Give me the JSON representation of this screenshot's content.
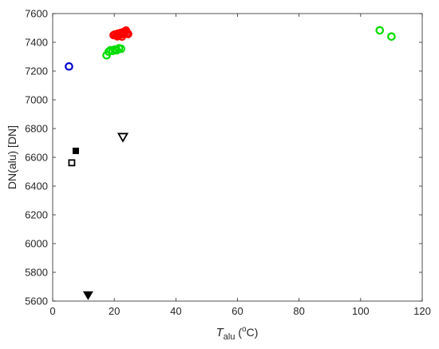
{
  "chart_data": {
    "type": "scatter",
    "xlabel": {
      "main": "T",
      "sub": "alu",
      "prefix": " (",
      "sup": "o",
      "suffix": "C)"
    },
    "ylabel": "DN(alu) [DN]",
    "xlim": [
      0,
      120
    ],
    "ylim": [
      5600,
      7600
    ],
    "xticks": [
      0,
      20,
      40,
      60,
      80,
      100,
      120
    ],
    "yticks": [
      5600,
      5800,
      6000,
      6200,
      6400,
      6600,
      6800,
      7000,
      7200,
      7400,
      7600
    ],
    "grid": false,
    "series": [
      {
        "marker": "circle-open",
        "color": "#ff0000",
        "points": [
          [
            19.8,
            7450
          ],
          [
            20.3,
            7455
          ],
          [
            20.8,
            7448
          ],
          [
            21.2,
            7460
          ],
          [
            21.6,
            7452
          ],
          [
            22.0,
            7465
          ],
          [
            22.4,
            7455
          ],
          [
            22.8,
            7470
          ],
          [
            23.2,
            7460
          ],
          [
            23.6,
            7475
          ],
          [
            24.0,
            7462
          ],
          [
            24.5,
            7458
          ],
          [
            21.0,
            7442
          ],
          [
            22.5,
            7440
          ],
          [
            23.8,
            7482
          ]
        ]
      },
      {
        "marker": "circle-open",
        "color": "#00dd00",
        "points": [
          [
            17.5,
            7310
          ],
          [
            18.2,
            7335
          ],
          [
            18.8,
            7345
          ],
          [
            19.5,
            7340
          ],
          [
            20.2,
            7350
          ],
          [
            20.8,
            7345
          ],
          [
            21.5,
            7358
          ],
          [
            22.2,
            7355
          ],
          [
            106.2,
            7483
          ],
          [
            110.0,
            7440
          ]
        ]
      },
      {
        "marker": "circle-open",
        "color": "#0000cc",
        "points": [
          [
            5.3,
            7232
          ]
        ]
      },
      {
        "marker": "square-filled",
        "color": "#000000",
        "points": [
          [
            7.5,
            6645
          ]
        ]
      },
      {
        "marker": "square-open",
        "color": "#000000",
        "points": [
          [
            6.2,
            6562
          ]
        ]
      },
      {
        "marker": "triangle-down-open",
        "color": "#000000",
        "points": [
          [
            22.8,
            6740
          ]
        ]
      },
      {
        "marker": "triangle-down-filled",
        "color": "#000000",
        "points": [
          [
            11.5,
            5640
          ]
        ]
      }
    ]
  }
}
